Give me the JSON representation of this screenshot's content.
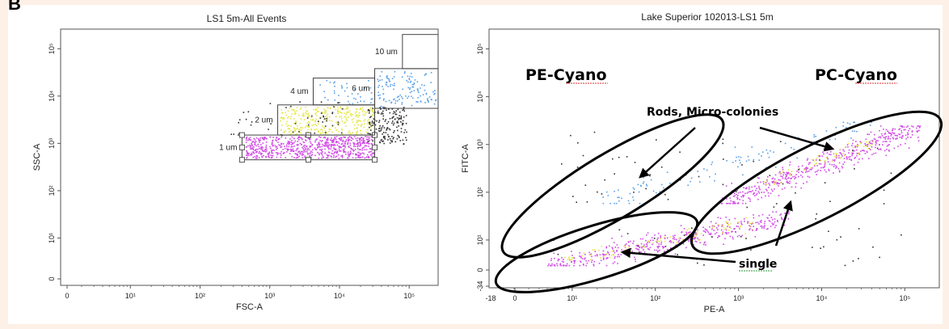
{
  "figure": {
    "part_letter": "B"
  },
  "colors": {
    "magenta": "#d14ae6",
    "yellow": "#e6e64d",
    "blue": "#5aa0e6",
    "black": "#333333",
    "gate": "#444444"
  },
  "chart_data": [
    {
      "type": "scatter",
      "title": "LS1 5m-All Events",
      "xlabel": "FSC-A",
      "ylabel": "SSC-A",
      "x_scale": "log",
      "y_scale": "log",
      "x_ticks": [
        "0",
        "10¹",
        "10²",
        "10³",
        "10⁴",
        "10⁵"
      ],
      "y_ticks": [
        "0",
        "10¹",
        "10²",
        "10³",
        "10⁴",
        "10⁵"
      ],
      "xlim": [
        1,
        260000
      ],
      "ylim": [
        1,
        260000
      ],
      "gates": [
        {
          "label": "1 um",
          "x": [
            400,
            32000
          ],
          "y": [
            450,
            1500
          ]
        },
        {
          "label": "2 um",
          "x": [
            1300,
            32000
          ],
          "y": [
            1500,
            6500
          ]
        },
        {
          "label": "4 um",
          "x": [
            4200,
            32000
          ],
          "y": [
            6500,
            24000
          ]
        },
        {
          "label": "6 um",
          "x": [
            32000,
            260000
          ],
          "y": [
            5500,
            38000
          ]
        },
        {
          "label": "10 um",
          "x": [
            80000,
            260000
          ],
          "y": [
            38000,
            200000
          ]
        }
      ],
      "clusters": [
        {
          "color": "magenta",
          "x": [
            450,
            31000
          ],
          "y": [
            500,
            1450
          ],
          "n": 700
        },
        {
          "color": "yellow",
          "x": [
            1400,
            31000
          ],
          "y": [
            1550,
            6200
          ],
          "n": 320
        },
        {
          "color": "blue",
          "x": [
            34000,
            240000
          ],
          "y": [
            6000,
            34000
          ],
          "n": 130
        },
        {
          "color": "black",
          "x": [
            25000,
            90000
          ],
          "y": [
            1000,
            6000
          ],
          "n": 170
        },
        {
          "color": "black",
          "x": [
            250,
            12000
          ],
          "y": [
            1500,
            8000
          ],
          "n": 50
        },
        {
          "color": "blue",
          "x": [
            5000,
            30000
          ],
          "y": [
            7000,
            22000
          ],
          "n": 40
        }
      ]
    },
    {
      "type": "scatter",
      "title": "Lake Superior 102013-LS1 5m",
      "xlabel": "PE-A",
      "ylabel": "FITC-A",
      "x_scale": "log",
      "y_scale": "log",
      "x_ticks": [
        "-18",
        "0",
        "10¹",
        "10²",
        "10³",
        "10⁴",
        "10⁵"
      ],
      "y_ticks": [
        "-34",
        "0",
        "10¹",
        "10²",
        "10³",
        "10⁴",
        "10⁵"
      ],
      "xlim": [
        1,
        260000
      ],
      "ylim": [
        1,
        260000
      ],
      "annotations": {
        "pe_cyano": "PE-Cyano",
        "pc_cyano": "PC-Cyano",
        "rods": "Rods, Micro-colonies",
        "single": "single"
      },
      "clusters": [
        {
          "color": "magenta",
          "x": [
            5,
            4000
          ],
          "y": [
            3,
            40
          ],
          "n": 420
        },
        {
          "color": "magenta",
          "x": [
            600,
            150000
          ],
          "y": [
            60,
            2500
          ],
          "n": 480
        },
        {
          "color": "yellow",
          "x": [
            8,
            1500
          ],
          "y": [
            4,
            30
          ],
          "n": 90
        },
        {
          "color": "yellow",
          "x": [
            2000,
            40000
          ],
          "y": [
            150,
            1200
          ],
          "n": 60
        },
        {
          "color": "blue",
          "x": [
            20,
            40000
          ],
          "y": [
            60,
            3000
          ],
          "n": 110
        },
        {
          "color": "black",
          "x": [
            5,
            100000
          ],
          "y": [
            3,
            2000
          ],
          "n": 90
        }
      ]
    }
  ]
}
